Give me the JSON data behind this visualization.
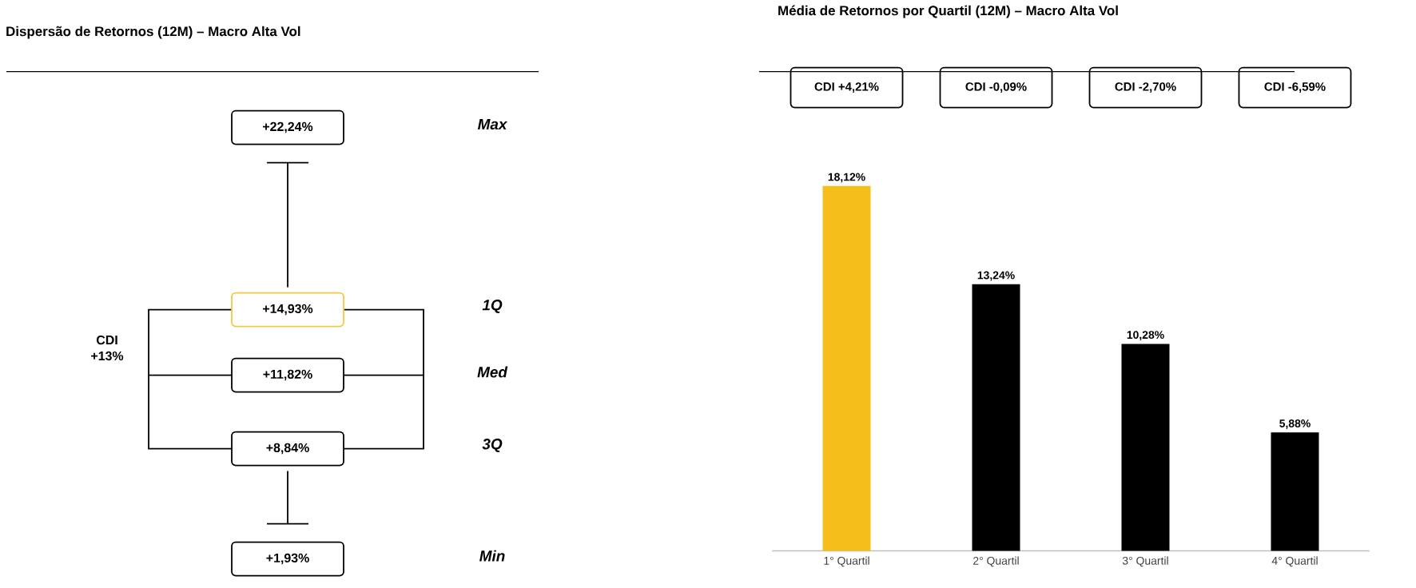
{
  "chart_data": [
    {
      "type": "other",
      "title": "Dispersão de Retornos (12M) – Macro Alta Vol",
      "annotations": [
        "+22,24%",
        "Max",
        "+14,93%",
        "1Q",
        "+11,82%",
        "Med",
        "+8,84%",
        "3Q",
        "+1,93%",
        "Min",
        "CDI +13%"
      ]
    },
    {
      "type": "bar",
      "title": "Média de Retornos por Quartil (12M) – Macro Alta Vol",
      "categories": [
        "1° Quartil",
        "2° Quartil",
        "3° Quartil",
        "4° Quartil"
      ],
      "values": [
        18.12,
        13.24,
        10.28,
        5.88
      ],
      "colors": [
        "#f5be1a",
        "#000000",
        "#000000",
        "#000000"
      ],
      "value_labels": [
        "18,12%",
        "13,24%",
        "10,28%",
        "5,88%"
      ],
      "tick_labels": "x",
      "annotations": [
        "CDI +4,21%",
        "CDI -0,09%",
        "CDI -2,70%",
        "CDI -6,59%"
      ]
    }
  ]
}
